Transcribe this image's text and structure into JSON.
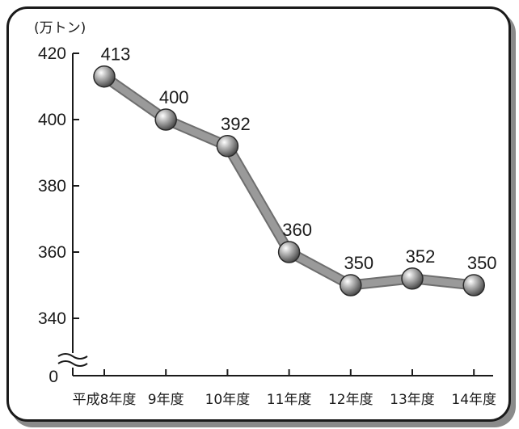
{
  "chart_data": {
    "type": "line",
    "unit_label": "(万トン)",
    "categories": [
      "平成8年度",
      "9年度",
      "10年度",
      "11年度",
      "12年度",
      "13年度",
      "14年度"
    ],
    "series": [
      {
        "values": [
          413,
          400,
          392,
          360,
          350,
          352,
          350
        ]
      }
    ],
    "y_ticks": [
      420,
      400,
      380,
      360,
      340
    ],
    "y_zero_label": "0",
    "axis_break": true,
    "ylim": [
      340,
      420
    ],
    "grid": false,
    "legend": "none",
    "data_labels": [
      "413",
      "400",
      "392",
      "360",
      "350",
      "352",
      "350"
    ],
    "colors": {
      "line": "#9a9a9a",
      "marker": "#7a7a7a",
      "text": "#1a1a1a"
    }
  }
}
